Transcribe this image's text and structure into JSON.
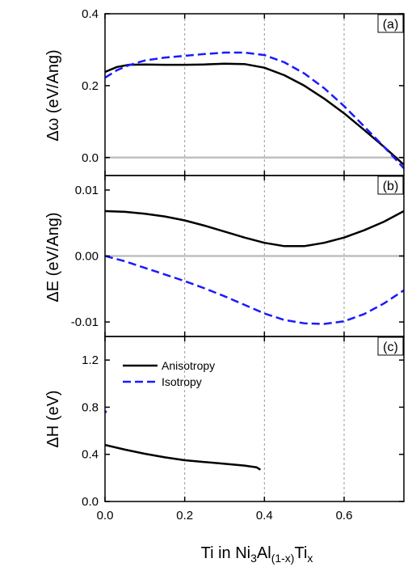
{
  "chart_data": {
    "type": "line",
    "x_axis": {
      "label": "Ti in Ni3Al(1-x)Tix",
      "range": [
        0.0,
        0.75
      ],
      "ticks": [
        "0.0",
        "0.2",
        "0.4",
        "0.6"
      ],
      "tick_values": [
        0.0,
        0.2,
        0.4,
        0.6
      ]
    },
    "legend": {
      "placement": "top-left of panel (c)",
      "entries": [
        "Anisotropy",
        "Isotropy"
      ]
    },
    "colors": {
      "Anisotropy": "#000000",
      "Isotropy": "#1a1aff",
      "zero_line": "#bfbfbf",
      "grid": "#9a9a9a"
    },
    "panels": [
      {
        "id": "a",
        "panel_label": "(a)",
        "ylabel": "Δω (eV/Ang)",
        "ylim": [
          -0.05,
          0.4
        ],
        "yticks": [
          "0.0",
          "0.2",
          "0.4"
        ],
        "ytick_values": [
          0.0,
          0.2,
          0.4
        ],
        "zero_line": true,
        "series": [
          {
            "name": "Anisotropy",
            "style": "solid",
            "x": [
              0.0,
              0.03,
              0.06,
              0.1,
              0.15,
              0.2,
              0.25,
              0.3,
              0.35,
              0.4,
              0.45,
              0.5,
              0.55,
              0.6,
              0.65,
              0.7,
              0.75
            ],
            "y": [
              0.238,
              0.252,
              0.258,
              0.259,
              0.258,
              0.258,
              0.259,
              0.261,
              0.26,
              0.25,
              0.229,
              0.2,
              0.164,
              0.123,
              0.077,
              0.03,
              -0.02
            ]
          },
          {
            "name": "Isotropy",
            "style": "dashed",
            "x": [
              0.0,
              0.03,
              0.06,
              0.1,
              0.15,
              0.2,
              0.25,
              0.3,
              0.35,
              0.4,
              0.45,
              0.5,
              0.55,
              0.6,
              0.65,
              0.7,
              0.75
            ],
            "y": [
              0.222,
              0.243,
              0.257,
              0.27,
              0.278,
              0.283,
              0.288,
              0.292,
              0.292,
              0.285,
              0.265,
              0.234,
              0.193,
              0.143,
              0.087,
              0.03,
              -0.03
            ]
          }
        ]
      },
      {
        "id": "b",
        "panel_label": "(b)",
        "ylabel": "ΔE (eV/Ang)",
        "ylim": [
          -0.0122,
          0.0122
        ],
        "yticks": [
          "0.01",
          "0.00",
          "-0.01"
        ],
        "ytick_values": [
          0.01,
          0.0,
          -0.01
        ],
        "zero_line": true,
        "series": [
          {
            "name": "Anisotropy",
            "style": "solid",
            "x": [
              0.0,
              0.05,
              0.1,
              0.15,
              0.2,
              0.25,
              0.3,
              0.35,
              0.4,
              0.45,
              0.5,
              0.55,
              0.6,
              0.65,
              0.7,
              0.75
            ],
            "y": [
              0.0068,
              0.0067,
              0.0064,
              0.006,
              0.0054,
              0.0046,
              0.0037,
              0.0028,
              0.002,
              0.0015,
              0.0015,
              0.002,
              0.0028,
              0.0039,
              0.0052,
              0.0068
            ]
          },
          {
            "name": "Isotropy",
            "style": "dashed",
            "x": [
              0.0,
              0.05,
              0.1,
              0.15,
              0.2,
              0.25,
              0.3,
              0.35,
              0.4,
              0.45,
              0.5,
              0.55,
              0.6,
              0.65,
              0.7,
              0.75
            ],
            "y": [
              0.0,
              -0.0008,
              -0.0018,
              -0.0028,
              -0.0038,
              -0.0049,
              -0.0061,
              -0.0074,
              -0.0087,
              -0.0097,
              -0.0102,
              -0.0103,
              -0.0099,
              -0.0088,
              -0.0072,
              -0.0052
            ]
          }
        ]
      },
      {
        "id": "c",
        "panel_label": "(c)",
        "ylabel": "ΔH (eV)",
        "ylim": [
          0.0,
          1.4
        ],
        "yticks": [
          "1.2",
          "0.8",
          "0.4",
          "0.0"
        ],
        "ytick_values": [
          1.2,
          0.8,
          0.4,
          0.0
        ],
        "zero_line": false,
        "series": [
          {
            "name": "Anisotropy",
            "style": "solid",
            "x": [
              0.0,
              0.05,
              0.1,
              0.15,
              0.2,
              0.25,
              0.3,
              0.35,
              0.38,
              0.39
            ],
            "y": [
              0.48,
              0.44,
              0.405,
              0.375,
              0.35,
              0.335,
              0.32,
              0.305,
              0.29,
              0.27
            ]
          },
          {
            "name": "Isotropy",
            "style": "dashed",
            "x": [
              0.0,
              0.003
            ],
            "y": [
              0.75,
              0.77
            ]
          }
        ]
      }
    ]
  }
}
